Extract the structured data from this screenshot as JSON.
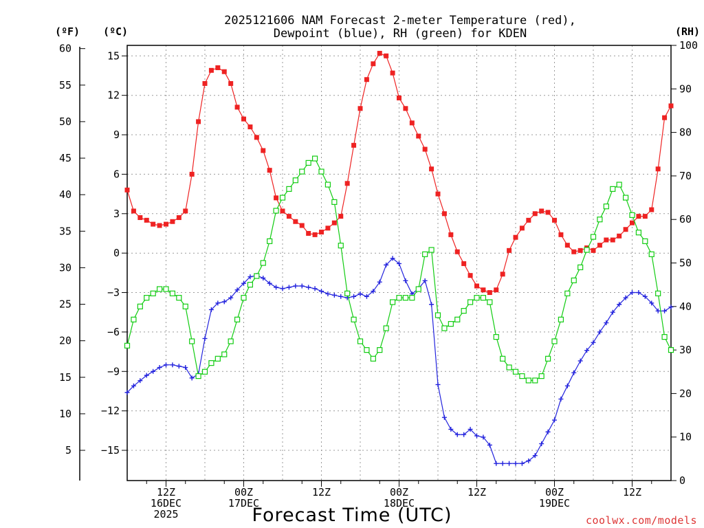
{
  "title_line1": "2025121606 NAM Forecast 2-meter Temperature (red),",
  "title_line2": "Dewpoint (blue), RH (green) for KDEN",
  "unit_f": "(ºF)",
  "unit_c": "(ºC)",
  "unit_rh": "(RH)",
  "xlabel": "Forecast Time (UTC)",
  "credit": "coolwx.com/models",
  "colors": {
    "temperature": "#ee2222",
    "dewpoint": "#2222dd",
    "rh": "#11cc11",
    "grid": "#999999"
  },
  "chart_data": {
    "type": "line",
    "x_unit": "forecast hour from 2025121606 UTC",
    "x_ticks": [
      {
        "hour": 6,
        "lines": [
          "12Z",
          "16DEC",
          "2025"
        ]
      },
      {
        "hour": 18,
        "lines": [
          "00Z",
          "17DEC"
        ]
      },
      {
        "hour": 30,
        "lines": [
          "12Z"
        ]
      },
      {
        "hour": 42,
        "lines": [
          "00Z",
          "18DEC"
        ]
      },
      {
        "hour": 54,
        "lines": [
          "12Z"
        ]
      },
      {
        "hour": 66,
        "lines": [
          "00Z",
          "19DEC"
        ]
      },
      {
        "hour": 78,
        "lines": [
          "12Z"
        ]
      }
    ],
    "xlim": [
      0,
      84
    ],
    "ylim_c": [
      -17.3,
      15.8
    ],
    "y_ticks_c": [
      "15",
      "12",
      "9",
      "6",
      "3",
      "0",
      "−3",
      "−6",
      "−9",
      "−12",
      "−15"
    ],
    "y_ticks_f": [
      "60",
      "55",
      "50",
      "45",
      "40",
      "35",
      "30",
      "25",
      "20",
      "15",
      "10",
      "5"
    ],
    "ylim_rh": [
      0,
      100
    ],
    "y_ticks_rh": [
      "100",
      "90",
      "80",
      "70",
      "60",
      "50",
      "40",
      "30",
      "20",
      "10",
      "0"
    ],
    "grid": true,
    "series": [
      {
        "name": "Temperature",
        "unit": "C",
        "marker": "filled-square",
        "color": "#ee2222",
        "x": [
          0,
          1,
          2,
          3,
          4,
          5,
          6,
          7,
          8,
          9,
          10,
          11,
          12,
          13,
          14,
          15,
          16,
          17,
          18,
          19,
          20,
          21,
          22,
          23,
          24,
          25,
          26,
          27,
          28,
          29,
          30,
          31,
          32,
          33,
          34,
          35,
          36,
          37,
          38,
          39,
          40,
          41,
          42,
          43,
          44,
          45,
          46,
          47,
          48,
          49,
          50,
          51,
          52,
          53,
          54,
          55,
          56,
          57,
          58,
          59,
          60,
          61,
          62,
          63,
          64,
          65,
          66,
          67,
          68,
          69,
          70,
          71,
          72,
          73,
          74,
          75,
          76,
          77,
          78,
          79,
          80,
          81,
          82,
          83,
          84
        ],
        "values": [
          4.8,
          3.2,
          2.7,
          2.5,
          2.2,
          2.1,
          2.2,
          2.4,
          2.7,
          3.2,
          6.0,
          10.0,
          12.9,
          13.9,
          14.1,
          13.8,
          12.9,
          11.1,
          10.2,
          9.6,
          8.8,
          7.8,
          6.3,
          4.2,
          3.2,
          2.8,
          2.4,
          2.1,
          1.5,
          1.4,
          1.6,
          1.9,
          2.3,
          2.8,
          5.3,
          8.2,
          11.0,
          13.2,
          14.4,
          15.2,
          15.0,
          13.7,
          11.8,
          11.0,
          9.9,
          8.9,
          7.9,
          6.4,
          4.5,
          3.0,
          1.4,
          0.1,
          -0.8,
          -1.7,
          -2.5,
          -2.8,
          -3.0,
          -2.8,
          -1.6,
          0.2,
          1.2,
          1.9,
          2.5,
          3.0,
          3.2,
          3.1,
          2.5,
          1.4,
          0.6,
          0.1,
          0.2,
          0.4,
          0.2,
          0.6,
          1.0,
          1.0,
          1.3,
          1.8,
          2.3,
          2.8,
          2.8,
          3.3,
          6.4,
          10.3,
          11.2
        ]
      },
      {
        "name": "Dewpoint",
        "unit": "C",
        "marker": "plus",
        "color": "#2222dd",
        "x": [
          0,
          1,
          2,
          3,
          4,
          5,
          6,
          7,
          8,
          9,
          10,
          11,
          12,
          13,
          14,
          15,
          16,
          17,
          18,
          19,
          20,
          21,
          22,
          23,
          24,
          25,
          26,
          27,
          28,
          29,
          30,
          31,
          32,
          33,
          34,
          35,
          36,
          37,
          38,
          39,
          40,
          41,
          42,
          43,
          44,
          45,
          46,
          47,
          48,
          49,
          50,
          51,
          52,
          53,
          54,
          55,
          56,
          57,
          58,
          59,
          60,
          61,
          62,
          63,
          64,
          65,
          66,
          67,
          68,
          69,
          70,
          71,
          72,
          73,
          74,
          75,
          76,
          77,
          78,
          79,
          80,
          81,
          82,
          83,
          84
        ],
        "values": [
          -10.6,
          -10.1,
          -9.7,
          -9.3,
          -9.0,
          -8.7,
          -8.5,
          -8.5,
          -8.6,
          -8.7,
          -9.5,
          -9.2,
          -6.5,
          -4.3,
          -3.8,
          -3.7,
          -3.4,
          -2.8,
          -2.3,
          -1.8,
          -1.7,
          -1.9,
          -2.3,
          -2.6,
          -2.7,
          -2.6,
          -2.5,
          -2.5,
          -2.6,
          -2.7,
          -2.9,
          -3.1,
          -3.2,
          -3.3,
          -3.4,
          -3.3,
          -3.1,
          -3.3,
          -2.9,
          -2.2,
          -0.9,
          -0.4,
          -0.8,
          -2.1,
          -3.1,
          -2.7,
          -2.1,
          -3.9,
          -10.0,
          -12.5,
          -13.4,
          -13.8,
          -13.8,
          -13.4,
          -13.9,
          -14.0,
          -14.6,
          -16.0,
          -16.0,
          -16.0,
          -16.0,
          -16.0,
          -15.8,
          -15.4,
          -14.5,
          -13.6,
          -12.7,
          -11.1,
          -10.1,
          -9.1,
          -8.2,
          -7.4,
          -6.8,
          -6.0,
          -5.3,
          -4.5,
          -3.9,
          -3.4,
          -3.0,
          -3.0,
          -3.3,
          -3.8,
          -4.4,
          -4.4,
          -4.1
        ]
      },
      {
        "name": "RH",
        "unit": "%",
        "marker": "open-square",
        "color": "#11cc11",
        "x": [
          0,
          1,
          2,
          3,
          4,
          5,
          6,
          7,
          8,
          9,
          10,
          11,
          12,
          13,
          14,
          15,
          16,
          17,
          18,
          19,
          20,
          21,
          22,
          23,
          24,
          25,
          26,
          27,
          28,
          29,
          30,
          31,
          32,
          33,
          34,
          35,
          36,
          37,
          38,
          39,
          40,
          41,
          42,
          43,
          44,
          45,
          46,
          47,
          48,
          49,
          50,
          51,
          52,
          53,
          54,
          55,
          56,
          57,
          58,
          59,
          60,
          61,
          62,
          63,
          64,
          65,
          66,
          67,
          68,
          69,
          70,
          71,
          72,
          73,
          74,
          75,
          76,
          77,
          78,
          79,
          80,
          81,
          82,
          83,
          84
        ],
        "values": [
          31,
          37,
          40,
          42,
          43,
          44,
          44,
          43,
          42,
          40,
          32,
          24,
          25,
          27,
          28,
          29,
          32,
          37,
          42,
          45,
          47,
          50,
          55,
          62,
          65,
          67,
          69,
          71,
          73,
          74,
          71,
          68,
          64,
          54,
          43,
          37,
          32,
          30,
          28,
          30,
          35,
          41,
          42,
          42,
          42,
          44,
          52,
          53,
          38,
          35,
          36,
          37,
          39,
          41,
          42,
          42,
          41,
          33,
          28,
          26,
          25,
          24,
          23,
          23,
          24,
          28,
          32,
          37,
          43,
          46,
          49,
          53,
          56,
          60,
          63,
          67,
          68,
          65,
          61,
          57,
          55,
          52,
          43,
          33,
          30
        ]
      }
    ]
  }
}
